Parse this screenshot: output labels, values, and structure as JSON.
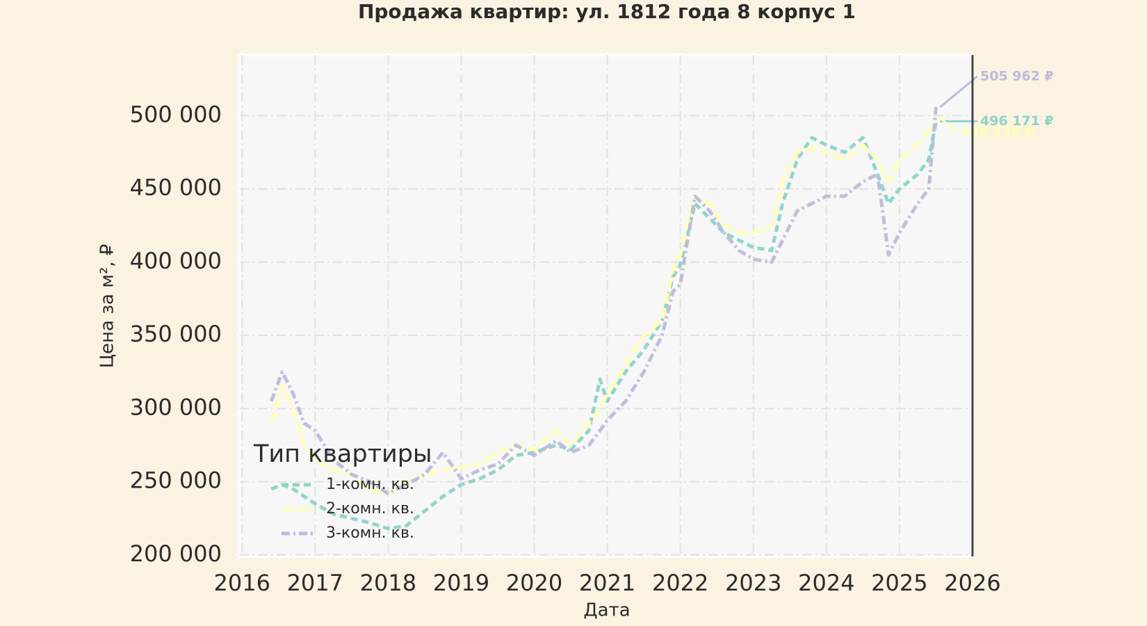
{
  "chart_data": {
    "type": "line",
    "title": "Продажа квартир: ул. 1812 года 8 корпус 1",
    "x_label": "Дата",
    "y_label": "Цена за м², ₽",
    "legend_title": "Тип квартиры",
    "legend_position": "lower left",
    "grid": true,
    "x": [
      2016.4,
      2016.55,
      2016.7,
      2016.85,
      2017.0,
      2017.25,
      2017.5,
      2017.75,
      2018.0,
      2018.25,
      2018.5,
      2018.75,
      2019.0,
      2019.25,
      2019.5,
      2019.75,
      2020.0,
      2020.3,
      2020.5,
      2020.75,
      2020.9,
      2021.0,
      2021.25,
      2021.5,
      2021.75,
      2021.9,
      2022.0,
      2022.2,
      2022.4,
      2022.6,
      2022.8,
      2023.0,
      2023.25,
      2023.4,
      2023.6,
      2023.8,
      2024.0,
      2024.25,
      2024.5,
      2024.7,
      2024.85,
      2025.0,
      2025.25,
      2025.4,
      2025.5
    ],
    "series": [
      {
        "name": "1-комн. кв.",
        "color": "#8dd3c7",
        "dash": "10 6",
        "end_label": "496 171 ₽",
        "values": [
          245000,
          248000,
          245000,
          240000,
          235000,
          228000,
          225000,
          222000,
          218000,
          220000,
          230000,
          240000,
          248000,
          252000,
          258000,
          268000,
          270000,
          275000,
          272000,
          285000,
          320000,
          305000,
          325000,
          340000,
          360000,
          390000,
          398000,
          440000,
          430000,
          420000,
          415000,
          410000,
          408000,
          440000,
          470000,
          485000,
          480000,
          475000,
          485000,
          460000,
          440000,
          450000,
          460000,
          470000,
          496171
        ]
      },
      {
        "name": "2-комн. кв.",
        "color": "#ffffb3",
        "dash": "16 6",
        "end_label": "498 238 ₽",
        "values": [
          290000,
          315000,
          300000,
          275000,
          265000,
          258000,
          255000,
          245000,
          242000,
          250000,
          255000,
          258000,
          260000,
          262000,
          270000,
          275000,
          272000,
          285000,
          275000,
          290000,
          300000,
          310000,
          330000,
          350000,
          360000,
          395000,
          405000,
          445000,
          440000,
          425000,
          420000,
          420000,
          425000,
          455000,
          475000,
          478000,
          475000,
          470000,
          480000,
          470000,
          455000,
          470000,
          480000,
          490000,
          498238
        ]
      },
      {
        "name": "3-комн. кв.",
        "color": "#bebada",
        "dash": "12 5 3 5",
        "end_label": "505 962 ₽",
        "values": [
          305000,
          325000,
          310000,
          290000,
          285000,
          265000,
          255000,
          250000,
          242000,
          248000,
          255000,
          270000,
          252000,
          258000,
          262000,
          275000,
          268000,
          278000,
          270000,
          275000,
          285000,
          292000,
          305000,
          325000,
          350000,
          380000,
          385000,
          445000,
          435000,
          420000,
          408000,
          402000,
          400000,
          415000,
          435000,
          440000,
          445000,
          445000,
          455000,
          460000,
          405000,
          420000,
          440000,
          450000,
          505962
        ]
      }
    ],
    "xlim": [
      2015.96,
      2026
    ],
    "xticks": [
      2016,
      2017,
      2018,
      2019,
      2020,
      2021,
      2022,
      2023,
      2024,
      2025,
      2026
    ],
    "ylim": [
      199000,
      541500
    ],
    "yticks": [
      {
        "value": 200000,
        "label": "200 000"
      },
      {
        "value": 250000,
        "label": "250 000"
      },
      {
        "value": 300000,
        "label": "300 000"
      },
      {
        "value": 350000,
        "label": "350 000"
      },
      {
        "value": 400000,
        "label": "400 000"
      },
      {
        "value": 450000,
        "label": "450 000"
      },
      {
        "value": 500000,
        "label": "500 000"
      }
    ]
  }
}
